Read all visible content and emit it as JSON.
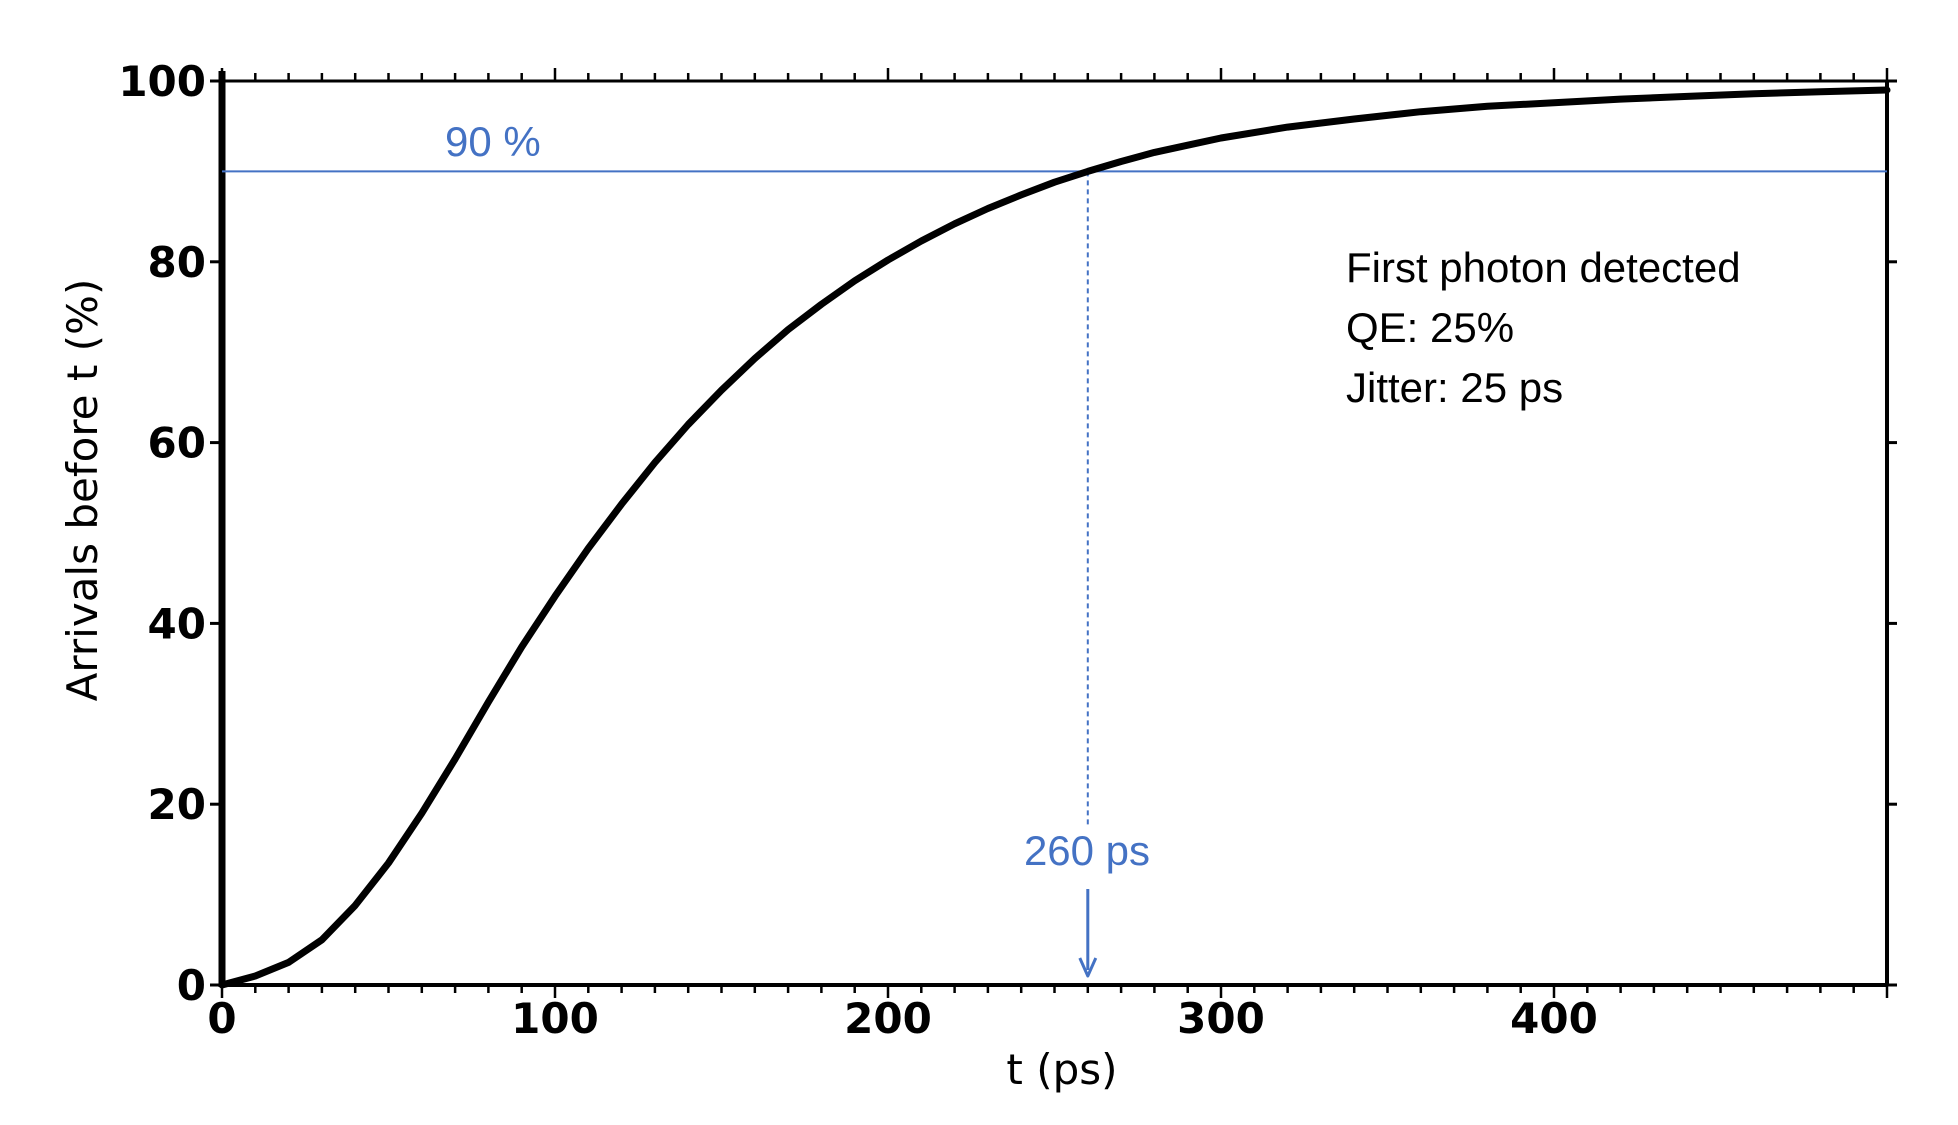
{
  "colors": {
    "accent": "#4472C4",
    "curve": "#000000"
  },
  "chart_data": {
    "type": "line",
    "xlabel": "t (ps)",
    "ylabel": "Arrivals before t   (%)",
    "xlim": [
      0,
      500
    ],
    "ylim": [
      0,
      100
    ],
    "x_ticks": [
      0,
      100,
      200,
      300,
      400
    ],
    "x_tick_labels": [
      "0",
      "100",
      "200",
      "300",
      "400"
    ],
    "y_ticks": [
      0,
      20,
      40,
      60,
      80,
      100
    ],
    "y_tick_labels": [
      "0",
      "20",
      "40",
      "60",
      "80",
      "100"
    ],
    "grid": false,
    "series": [
      {
        "x": [
          0,
          10,
          20,
          30,
          40,
          50,
          60,
          70,
          80,
          90,
          100,
          110,
          120,
          130,
          140,
          150,
          160,
          170,
          180,
          190,
          200,
          210,
          220,
          230,
          240,
          250,
          260,
          270,
          280,
          290,
          300,
          320,
          340,
          360,
          380,
          400,
          420,
          440,
          460,
          480,
          500
        ],
        "y": [
          0,
          1,
          2.5,
          5,
          8.8,
          13.5,
          19,
          25,
          31.3,
          37.4,
          43,
          48.3,
          53.2,
          57.8,
          62,
          65.8,
          69.3,
          72.5,
          75.3,
          77.9,
          80.2,
          82.3,
          84.2,
          85.9,
          87.4,
          88.8,
          90,
          91.1,
          92.1,
          92.9,
          93.7,
          94.9,
          95.8,
          96.6,
          97.2,
          97.6,
          98,
          98.3,
          98.6,
          98.8,
          99
        ]
      }
    ],
    "threshold": {
      "y": 90,
      "label": "90 %"
    },
    "marker": {
      "x": 260,
      "label": "260 ps"
    },
    "annotation": {
      "lines": [
        "First photon detected",
        "QE: 25%",
        "Jitter: 25 ps"
      ]
    }
  }
}
